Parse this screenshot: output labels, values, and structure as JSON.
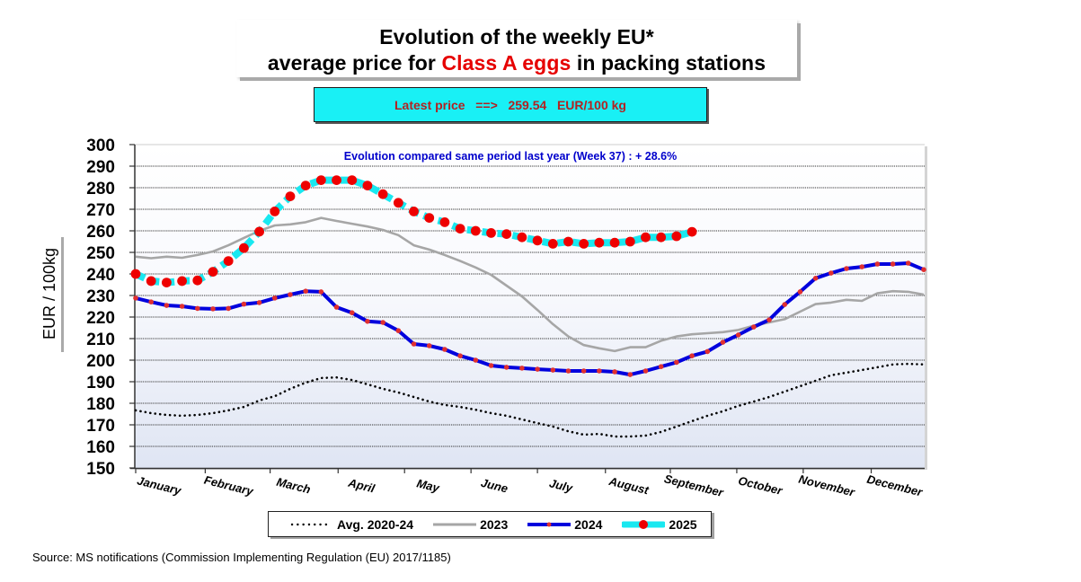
{
  "title": {
    "line1": "Evolution of the weekly EU*",
    "line2_prefix": "average price for ",
    "line2_highlight": "Class A eggs",
    "line2_suffix": " in packing stations"
  },
  "latest_price": {
    "label": "Latest price   ==>   259.54   EUR/100 kg"
  },
  "source": "Source: MS notifications (Commission Implementing Regulation (EU) 2017/1185)",
  "colors": {
    "avg": "#000000",
    "y2023": "#a6a6a6",
    "y2024": "#0000dd",
    "y2024_marker": "#e03030",
    "y2025_line": "#19e8f0",
    "y2025_marker": "#ee0000",
    "title_highlight": "#e60000",
    "latest_box": "#19f0f5",
    "annotation": "#0000cc"
  },
  "chart_data": {
    "type": "line",
    "title": "Evolution of the weekly EU* average price for Class A eggs in packing stations",
    "xlabel": "",
    "ylabel": "EUR / 100kg",
    "ylim": [
      150,
      300
    ],
    "yticks": [
      150,
      160,
      170,
      180,
      190,
      200,
      210,
      220,
      230,
      240,
      250,
      260,
      270,
      280,
      290,
      300
    ],
    "x_weeks": 52,
    "month_labels": [
      "January",
      "February",
      "March",
      "April",
      "May",
      "June",
      "July",
      "August",
      "September",
      "October",
      "November",
      "December"
    ],
    "month_start_weeks": [
      1,
      5.5,
      9.7,
      14.1,
      18.4,
      22.7,
      27.0,
      31.4,
      35.6,
      39.9,
      44.2,
      48.6
    ],
    "grid": true,
    "legend_position": "bottom",
    "annotation": "Evolution compared same period last year (Week 37) : + 28.6%",
    "series": [
      {
        "name": "Avg. 2020-24",
        "style": "dotted",
        "values": [
          176.7,
          175.4,
          174.6,
          174.2,
          174.6,
          175.4,
          176.7,
          178.3,
          181.3,
          183.3,
          186.7,
          189.6,
          191.7,
          192.0,
          190.8,
          188.8,
          186.7,
          185.0,
          182.9,
          180.8,
          179.2,
          178.3,
          177.0,
          175.4,
          174.2,
          172.5,
          170.8,
          169.2,
          167.0,
          165.4,
          165.8,
          164.6,
          164.6,
          165.0,
          166.7,
          169.2,
          171.7,
          174.2,
          176.3,
          178.8,
          180.8,
          182.9,
          185.4,
          187.9,
          190.4,
          193.0,
          194.2,
          195.4,
          196.7,
          198.0,
          198.3,
          198.0
        ]
      },
      {
        "name": "2023",
        "style": "solid-gray",
        "values": [
          248.0,
          247.3,
          248.0,
          247.5,
          248.8,
          250.4,
          253.3,
          256.7,
          260.0,
          262.5,
          263.0,
          264.0,
          266.0,
          264.6,
          263.3,
          262.0,
          260.4,
          258.0,
          253.3,
          251.3,
          248.8,
          246.0,
          243.0,
          239.6,
          234.6,
          229.6,
          223.3,
          216.7,
          211.0,
          207.0,
          205.5,
          204.2,
          206.0,
          206.0,
          209.0,
          211.0,
          212.0,
          212.5,
          213.0,
          214.0,
          216.0,
          217.5,
          219.0,
          222.5,
          226.0,
          226.7,
          228.0,
          227.5,
          231.0,
          232.0,
          231.7,
          230.4
        ]
      },
      {
        "name": "2024",
        "style": "solid-blue-markers",
        "values": [
          228.8,
          227.0,
          225.4,
          225.0,
          224.0,
          223.8,
          224.0,
          226.0,
          226.7,
          228.8,
          230.4,
          232.0,
          231.7,
          224.6,
          222.0,
          218.0,
          217.5,
          213.7,
          207.5,
          206.7,
          205.0,
          202.0,
          200.0,
          197.5,
          196.7,
          196.3,
          195.8,
          195.4,
          195.0,
          195.0,
          195.0,
          194.6,
          193.3,
          195.0,
          197.0,
          199.0,
          202.0,
          204.0,
          208.3,
          211.7,
          215.4,
          218.7,
          225.8,
          231.7,
          238.0,
          240.4,
          242.5,
          243.3,
          244.6,
          244.6,
          245.0,
          242.0
        ]
      },
      {
        "name": "2025",
        "style": "dashed-cyan-red-dots",
        "values": [
          240.0,
          236.7,
          236.0,
          236.7,
          237.0,
          241.0,
          246.0,
          252.0,
          259.6,
          269.0,
          276.0,
          281.0,
          283.5,
          283.5,
          283.5,
          281.0,
          277.0,
          273.0,
          269.0,
          266.0,
          264.0,
          261.0,
          260.0,
          259.0,
          258.5,
          257.0,
          255.5,
          254.0,
          255.0,
          254.0,
          254.5,
          254.5,
          255.0,
          257.0,
          257.0,
          257.5,
          259.54
        ]
      }
    ]
  }
}
